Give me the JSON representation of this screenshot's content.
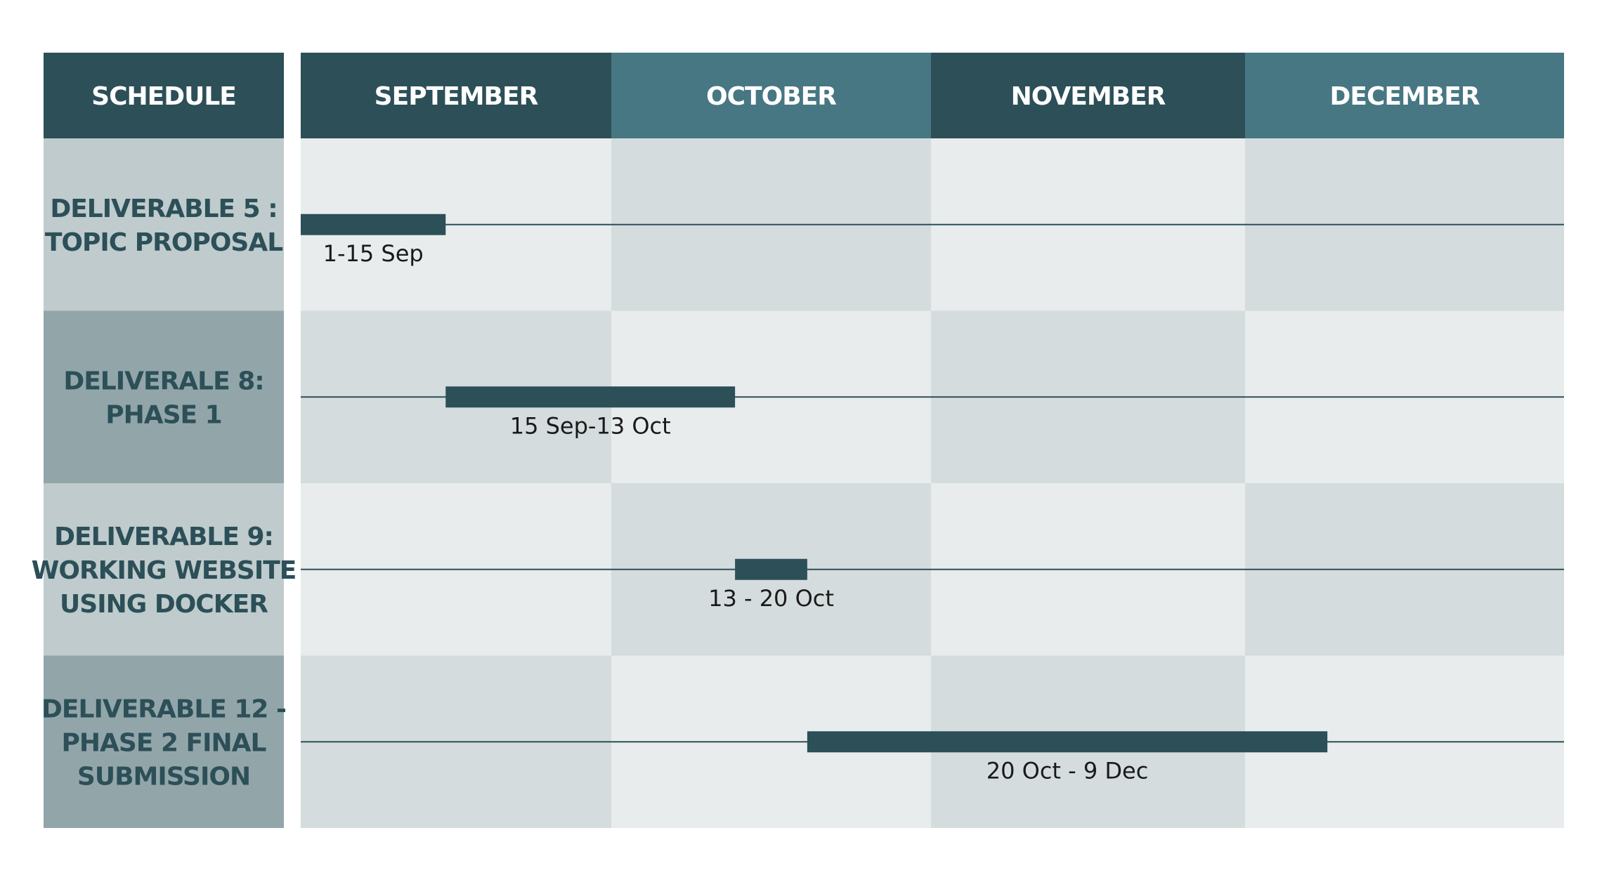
{
  "colors": {
    "header_dark": "#2c4f58",
    "header_light": "#467783",
    "row_label_light": "#bfcbcc",
    "row_label_dark": "#92a6aa",
    "cell_light": "#e8ecec",
    "cell_dark": "#d4dcdd",
    "bar": "#2c4f58",
    "line": "#2c4f58"
  },
  "chart_data": {
    "type": "gantt",
    "corner_label": "SCHEDULE",
    "months": [
      "SEPTEMBER",
      "OCTOBER",
      "NOVEMBER",
      "DECEMBER"
    ],
    "tasks": [
      {
        "name_lines": [
          "DELIVERABLE 5 :",
          "TOPIC PROPOSAL"
        ],
        "start": "1 Sep",
        "end": "15 Sep",
        "label": "1-15 Sep"
      },
      {
        "name_lines": [
          "DELIVERALE 8:",
          "PHASE 1"
        ],
        "start": "15 Sep",
        "end": "13 Oct",
        "label": "15 Sep-13 Oct"
      },
      {
        "name_lines": [
          "DELIVERABLE 9:",
          "WORKING WEBSITE",
          "USING DOCKER"
        ],
        "start": "13 Oct",
        "end": "20 Oct",
        "label": "13 - 20 Oct"
      },
      {
        "name_lines": [
          "DELIVERABLE 12 -",
          "PHASE 2 FINAL",
          "SUBMISSION"
        ],
        "start": "20 Oct",
        "end": "9 Dec",
        "label": "20 Oct - 9 Dec"
      }
    ]
  }
}
